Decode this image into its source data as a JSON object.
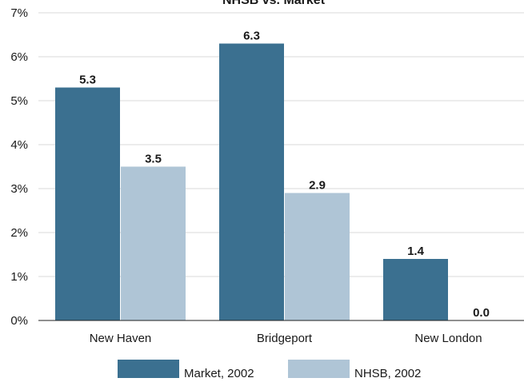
{
  "chart_data": {
    "type": "bar",
    "title": "NHSB vs. Market",
    "categories": [
      "New Haven",
      "Bridgeport",
      "New London"
    ],
    "series": [
      {
        "name": "Market, 2002",
        "values": [
          5.3,
          6.3,
          1.4
        ],
        "color": "#3b7090"
      },
      {
        "name": "NHSB, 2002",
        "values": [
          3.5,
          2.9,
          0.0
        ],
        "color": "#afc5d6"
      }
    ],
    "value_labels": [
      [
        "5.3",
        "6.3",
        "1.4"
      ],
      [
        "3.5",
        "2.9",
        "0.0"
      ]
    ],
    "ylim": [
      0,
      7
    ],
    "yticks": [
      "0%",
      "1%",
      "2%",
      "3%",
      "4%",
      "5%",
      "6%",
      "7%"
    ],
    "grid": true,
    "legend_position": "bottom"
  }
}
